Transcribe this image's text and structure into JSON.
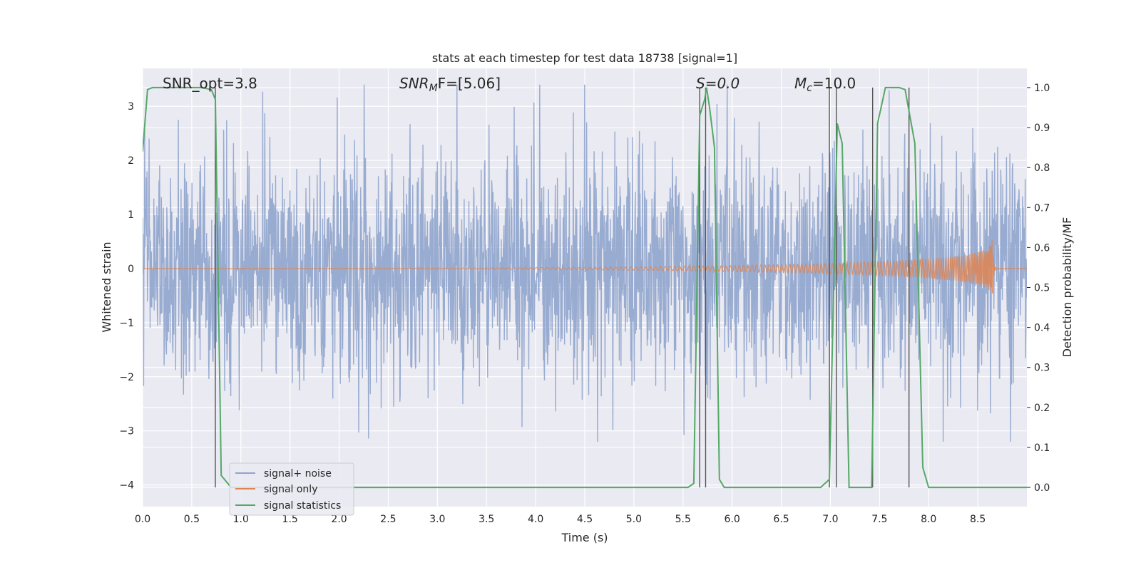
{
  "chart_data": {
    "type": "line",
    "title": "stats at each timestep for test data 18738 [signal=1]",
    "xlabel": "Time (s)",
    "ylabel": "Whitened strain",
    "ylabel_right": "Detection probability/MF",
    "xlim": [
      0.0,
      9.0
    ],
    "ylim": [
      -4.4,
      3.7
    ],
    "ylim_right": [
      -0.048,
      1.048
    ],
    "x_ticks": [
      "0.0",
      "0.5",
      "1.0",
      "1.5",
      "2.0",
      "2.5",
      "3.0",
      "3.5",
      "4.0",
      "4.5",
      "5.0",
      "5.5",
      "6.0",
      "6.5",
      "7.0",
      "7.5",
      "8.0",
      "8.5"
    ],
    "y_ticks": [
      "−4",
      "−3",
      "−2",
      "−1",
      "0",
      "1",
      "2",
      "3"
    ],
    "y_right_ticks": [
      "0.0",
      "0.1",
      "0.2",
      "0.3",
      "0.4",
      "0.5",
      "0.6",
      "0.7",
      "0.8",
      "0.9",
      "1.0"
    ],
    "grid": true,
    "background": "#eaeaf2",
    "legend_position": "lower-left",
    "annotations": [
      "SNR_opt=3.8",
      "SNR",
      "M",
      "F=[5.06]",
      "S=0.0",
      "M",
      "c",
      "=10.0"
    ],
    "series": [
      {
        "name": "signal+ noise",
        "color": "#8fa4cc",
        "kind": "noise",
        "approx_envelope": [
          -3.2,
          3.4
        ]
      },
      {
        "name": "signal only",
        "color": "#dd8452",
        "kind": "chirp",
        "merger_time": 8.65,
        "peak_amplitude": 0.55
      },
      {
        "name": "signal statistics",
        "color": "#55a868",
        "axis": "right",
        "x": [
          0.0,
          0.05,
          0.1,
          0.6,
          0.7,
          0.74,
          0.8,
          0.9,
          5.55,
          5.61,
          5.67,
          5.72,
          5.74,
          5.77,
          5.82,
          5.87,
          5.92,
          6.0,
          6.9,
          6.99,
          7.07,
          7.12,
          7.19,
          7.3,
          7.42,
          7.48,
          7.56,
          7.7,
          7.76,
          7.86,
          7.94,
          8.0,
          8.5,
          9.0
        ],
        "y": [
          0.84,
          0.995,
          1.0,
          1.0,
          0.995,
          0.97,
          0.03,
          0.0,
          0.0,
          0.01,
          0.93,
          0.97,
          1.0,
          0.95,
          0.85,
          0.02,
          0.0,
          0.0,
          0.0,
          0.02,
          0.91,
          0.86,
          0.0,
          0.0,
          0.0,
          0.91,
          1.0,
          1.0,
          0.995,
          0.86,
          0.05,
          0.0,
          0.0,
          0.0
        ]
      }
    ],
    "vertical_markers": [
      0.74,
      5.67,
      5.73,
      6.99,
      7.06,
      7.43,
      7.8
    ]
  }
}
